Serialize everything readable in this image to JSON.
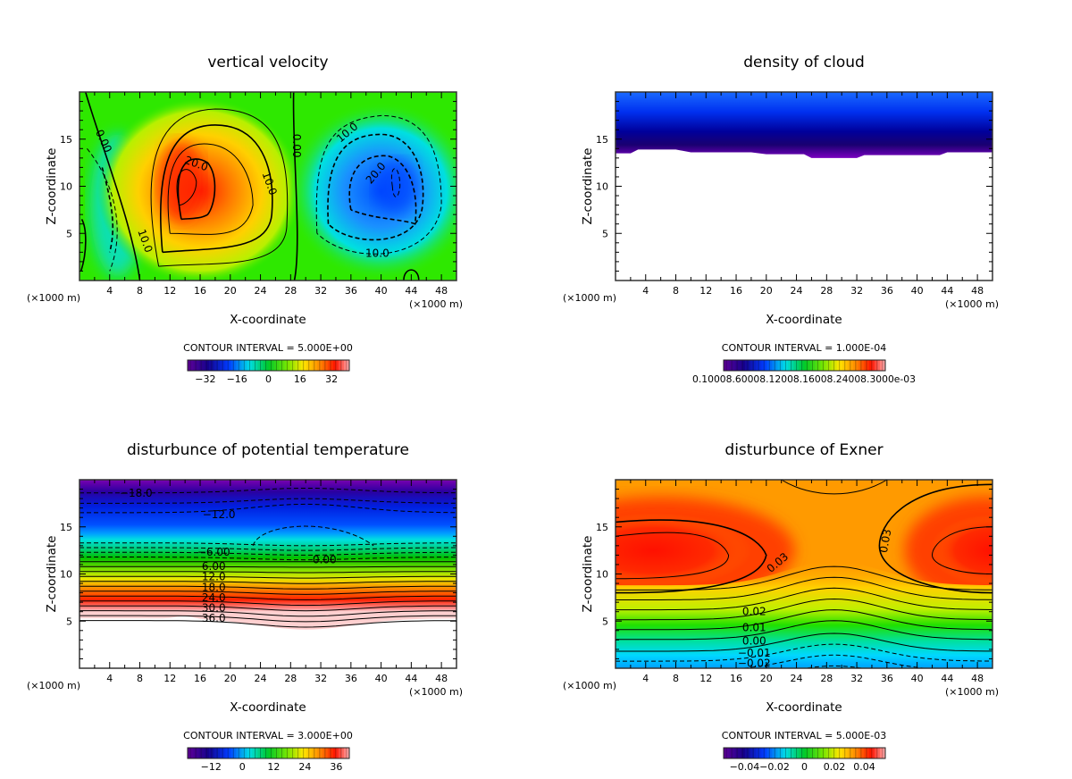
{
  "chart_data": [
    {
      "type": "heatmap",
      "title": "vertical velocity",
      "xlabel": "X-coordinate",
      "ylabel": "Z-coordinate",
      "x_unit_left": "(×1000 m)",
      "x_unit_right": "(×1000 m)",
      "xlim": [
        0,
        50
      ],
      "ylim": [
        0,
        20
      ],
      "xticks": [
        4,
        8,
        12,
        16,
        20,
        24,
        28,
        32,
        36,
        40,
        44,
        48
      ],
      "yticks": [
        5,
        10,
        15
      ],
      "contour_interval": "CONTOUR INTERVAL = 5.000E+00",
      "colorbar": {
        "range": [
          -41,
          41
        ],
        "ticks": [
          -32,
          -16,
          0,
          16,
          32
        ],
        "tick_labels": [
          "−32",
          "−16",
          "0",
          "16",
          "32"
        ]
      },
      "contour_labels": [
        {
          "text": "0.00",
          "x": 3.2,
          "z": 14.8,
          "rot": 65
        },
        {
          "text": "0.00",
          "x": 28.8,
          "z": 14.3,
          "rot": 90
        },
        {
          "text": "20.0",
          "x": 15.5,
          "z": 12.4,
          "rot": 20
        },
        {
          "text": "10.0",
          "x": 25.2,
          "z": 10.3,
          "rot": 70
        },
        {
          "text": "10.0",
          "x": 8.7,
          "z": 4.2,
          "rot": 70
        },
        {
          "text": "10.0",
          "x": 35.5,
          "z": 15.7,
          "rot": -40
        },
        {
          "text": "20.0",
          "x": 39.3,
          "z": 11.4,
          "rot": -50
        },
        {
          "text": "10.0",
          "x": 39.5,
          "z": 2.9,
          "rot": 0
        }
      ]
    },
    {
      "type": "heatmap",
      "title": "density of cloud",
      "xlabel": "X-coordinate",
      "ylabel": "Z-coordinate",
      "x_unit_left": "(×1000 m)",
      "x_unit_right": "(×1000 m)",
      "xlim": [
        0,
        50
      ],
      "ylim": [
        0,
        20
      ],
      "xticks": [
        4,
        8,
        12,
        16,
        20,
        24,
        28,
        32,
        36,
        40,
        44,
        48
      ],
      "yticks": [
        5,
        10,
        15
      ],
      "contour_interval": "CONTOUR INTERVAL = 1.000E-04",
      "colorbar": {
        "label_text": "0.10008.60008.12008.16008.24008.3000e-03"
      },
      "contour_labels": []
    },
    {
      "type": "heatmap",
      "title": "disturbunce of potential temperature",
      "xlabel": "X-coordinate",
      "ylabel": "Z-coordinate",
      "x_unit_left": "(×1000 m)",
      "x_unit_right": "(×1000 m)",
      "xlim": [
        0,
        50
      ],
      "ylim": [
        0,
        20
      ],
      "xticks": [
        4,
        8,
        12,
        16,
        20,
        24,
        28,
        32,
        36,
        40,
        44,
        48
      ],
      "yticks": [
        5,
        10,
        15
      ],
      "contour_interval": "CONTOUR INTERVAL = 3.000E+00",
      "colorbar": {
        "range": [
          -21,
          41
        ],
        "ticks": [
          -12,
          0,
          12,
          24,
          36
        ],
        "tick_labels": [
          "−12",
          "0",
          "12",
          "24",
          "36"
        ]
      },
      "contour_labels": [
        {
          "text": "−18.0",
          "x": 7.5,
          "z": 18.6,
          "rot": 0
        },
        {
          "text": "−12.0",
          "x": 18.5,
          "z": 16.3,
          "rot": 0
        },
        {
          "text": "−6.00",
          "x": 17.8,
          "z": 12.3,
          "rot": 0
        },
        {
          "text": "0.00",
          "x": 32.5,
          "z": 11.5,
          "rot": 0
        },
        {
          "text": "6.00",
          "x": 17.8,
          "z": 10.8,
          "rot": 0
        },
        {
          "text": "12.0",
          "x": 17.8,
          "z": 9.7,
          "rot": 0
        },
        {
          "text": "18.0",
          "x": 17.8,
          "z": 8.6,
          "rot": 0
        },
        {
          "text": "24.0",
          "x": 17.8,
          "z": 7.5,
          "rot": 0
        },
        {
          "text": "30.0",
          "x": 17.8,
          "z": 6.4,
          "rot": 0
        },
        {
          "text": "36.0",
          "x": 17.8,
          "z": 5.3,
          "rot": 0
        }
      ]
    },
    {
      "type": "heatmap",
      "title": "disturbunce of Exner",
      "xlabel": "X-coordinate",
      "ylabel": "Z-coordinate",
      "x_unit_left": "(×1000 m)",
      "x_unit_right": "(×1000 m)",
      "xlim": [
        0,
        50
      ],
      "ylim": [
        0,
        20
      ],
      "xticks": [
        4,
        8,
        12,
        16,
        20,
        24,
        28,
        32,
        36,
        40,
        44,
        48
      ],
      "yticks": [
        5,
        10,
        15
      ],
      "contour_interval": "CONTOUR INTERVAL = 5.000E-03",
      "colorbar": {
        "range": [
          -0.054,
          0.054
        ],
        "ticks": [
          -0.04,
          -0.02,
          0,
          0.02,
          0.04
        ],
        "tick_labels": [
          "−0.04",
          "−0.02",
          "0",
          "0.02",
          "0.04"
        ]
      },
      "contour_labels": [
        {
          "text": "0.03",
          "x": 21.5,
          "z": 11.2,
          "rot": -40
        },
        {
          "text": "0.03",
          "x": 35.8,
          "z": 13.5,
          "rot": -80
        },
        {
          "text": "0.02",
          "x": 18.4,
          "z": 6.0,
          "rot": 0
        },
        {
          "text": "0.01",
          "x": 18.4,
          "z": 4.3,
          "rot": 0
        },
        {
          "text": "0.00",
          "x": 18.4,
          "z": 2.9,
          "rot": 0
        },
        {
          "text": "−0.01",
          "x": 18.4,
          "z": 1.6,
          "rot": 0
        },
        {
          "text": "−0.02",
          "x": 18.4,
          "z": 0.5,
          "rot": 0
        }
      ]
    }
  ]
}
